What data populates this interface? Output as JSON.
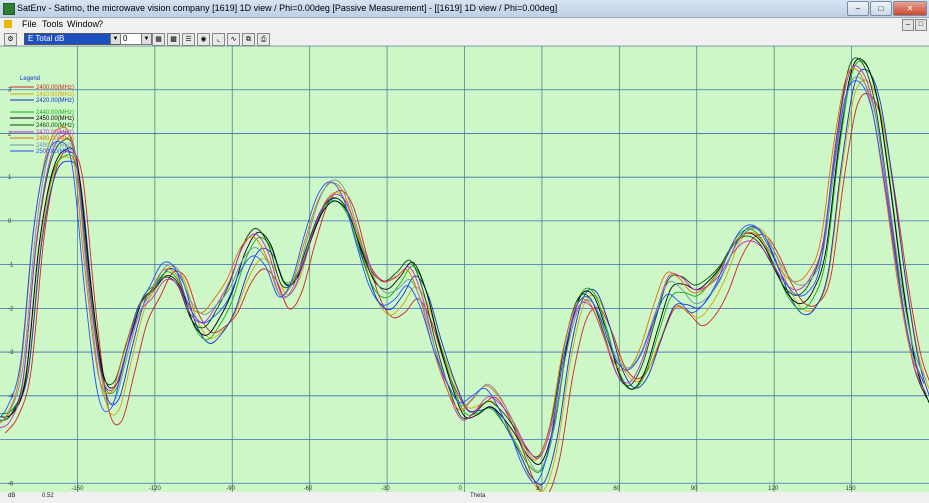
{
  "window": {
    "title": "SatEnv - Satimo, the microwave vision company [1619] 1D view / Phi=0.00deg [Passive Measurement] - [[1619] 1D view / Phi=0.00deg]"
  },
  "menu": [
    "File",
    "Tools",
    "Window",
    "?"
  ],
  "toolbar": {
    "quantity": "E Total dB",
    "phi_value": "0"
  },
  "status": {
    "unit": "dB",
    "time": "0.52"
  },
  "icons": {
    "app": "satenv-app-icon",
    "minimize": "minimize-icon",
    "maximize": "maximize-icon",
    "close": "close-icon",
    "toolbar": [
      "settings-icon",
      "dropdown-arrow-icon",
      "dropdown-arrow-icon",
      "chart-view-icon",
      "color-map-icon",
      "list-view-icon",
      "circle-plot-icon",
      "axes-icon",
      "curve-icon",
      "copy-icon",
      "print-icon"
    ]
  },
  "colors": {
    "plot_bg": "#cdf7c6",
    "grid_v": "#4a8a8a",
    "grid_h": "#3d6fb4"
  },
  "chart_data": {
    "type": "line",
    "xlabel": "Theta",
    "ylabel": "",
    "title": "",
    "xlim": [
      -180,
      180
    ],
    "ylim": [
      -6.2,
      4
    ],
    "x_ticks": [
      -150,
      -120,
      -90,
      -60,
      -30,
      0,
      30,
      60,
      90,
      120,
      150
    ],
    "y_ticks": [
      -6,
      -5,
      -4,
      -3,
      -2,
      -1,
      0,
      1,
      2,
      3,
      4
    ],
    "y_tick_labels": [
      "-6",
      "",
      "-4",
      "-3",
      "-2",
      "-1",
      "0",
      "1",
      "2",
      "3",
      ""
    ],
    "grid": true,
    "legend_title": "Legend",
    "legend_placement": "top-left",
    "x": [
      -180,
      -175,
      -170,
      -165,
      -160,
      -155,
      -150,
      -145,
      -140,
      -135,
      -130,
      -125,
      -120,
      -115,
      -110,
      -105,
      -100,
      -95,
      -90,
      -85,
      -80,
      -75,
      -70,
      -65,
      -60,
      -55,
      -50,
      -45,
      -40,
      -35,
      -30,
      -25,
      -20,
      -15,
      -10,
      -5,
      0,
      5,
      10,
      15,
      20,
      25,
      30,
      35,
      40,
      45,
      50,
      55,
      60,
      65,
      70,
      75,
      80,
      85,
      90,
      95,
      100,
      105,
      110,
      115,
      120,
      125,
      130,
      135,
      140,
      145,
      150,
      155,
      160,
      165,
      170,
      175,
      180
    ],
    "base": [
      -4.6,
      -4.4,
      -3.5,
      -0.5,
      1.2,
      1.7,
      1.3,
      -1.5,
      -3.7,
      -4.0,
      -3.0,
      -2.0,
      -1.6,
      -1.2,
      -1.4,
      -2.2,
      -2.5,
      -2.2,
      -1.7,
      -0.9,
      -0.5,
      -0.8,
      -1.6,
      -1.4,
      -0.5,
      0.3,
      0.6,
      0.3,
      -0.6,
      -1.4,
      -1.7,
      -1.5,
      -1.2,
      -1.8,
      -2.9,
      -3.8,
      -4.4,
      -4.3,
      -4.1,
      -4.4,
      -4.9,
      -5.5,
      -5.7,
      -4.8,
      -3.0,
      -1.9,
      -1.8,
      -2.5,
      -3.4,
      -3.7,
      -3.3,
      -2.4,
      -1.6,
      -1.6,
      -1.8,
      -1.6,
      -1.2,
      -0.6,
      -0.3,
      -0.4,
      -0.9,
      -1.5,
      -1.8,
      -1.6,
      -0.8,
      1.5,
      3.2,
      3.4,
      2.6,
      0.7,
      -1.5,
      -3.2,
      -4.0
    ],
    "series": [
      {
        "name": "2400.00(MHz)",
        "color": "#d62020",
        "offset": -0.25,
        "shift": 2,
        "wobble": 0.35,
        "phase": 0.0
      },
      {
        "name": "2410.00(MHz)",
        "color": "#d9a400",
        "offset": -0.15,
        "shift": 1,
        "wobble": 0.3,
        "phase": 0.7
      },
      {
        "name": "2420.00(MHz)",
        "color": "#1030d0",
        "offset": -0.1,
        "shift": 1,
        "wobble": 0.28,
        "phase": 1.4
      },
      {
        "name": "2440.00(MHz)",
        "color": "#10b010",
        "offset": 0.0,
        "shift": 0,
        "wobble": 0.22,
        "phase": 2.1
      },
      {
        "name": "2450.00(MHz)",
        "color": "#000000",
        "offset": 0.05,
        "shift": 0,
        "wobble": 0.2,
        "phase": 2.8
      },
      {
        "name": "2460.00(MHz)",
        "color": "#005000",
        "offset": 0.12,
        "shift": -1,
        "wobble": 0.22,
        "phase": 3.5
      },
      {
        "name": "2470.00(MHz)",
        "color": "#d020d0",
        "offset": 0.08,
        "shift": -1,
        "wobble": 0.25,
        "phase": 4.2
      },
      {
        "name": "2480.00(MHz)",
        "color": "#e07000",
        "offset": 0.18,
        "shift": -2,
        "wobble": 0.24,
        "phase": 4.9
      },
      {
        "name": "2490.00(MHz)",
        "color": "#7090a0",
        "offset": 0.1,
        "shift": -1,
        "wobble": 0.27,
        "phase": 5.6
      },
      {
        "name": "2500.00(MHz)",
        "color": "#2050ff",
        "offset": 0.0,
        "shift": -2,
        "wobble": 0.3,
        "phase": 6.3
      }
    ]
  }
}
